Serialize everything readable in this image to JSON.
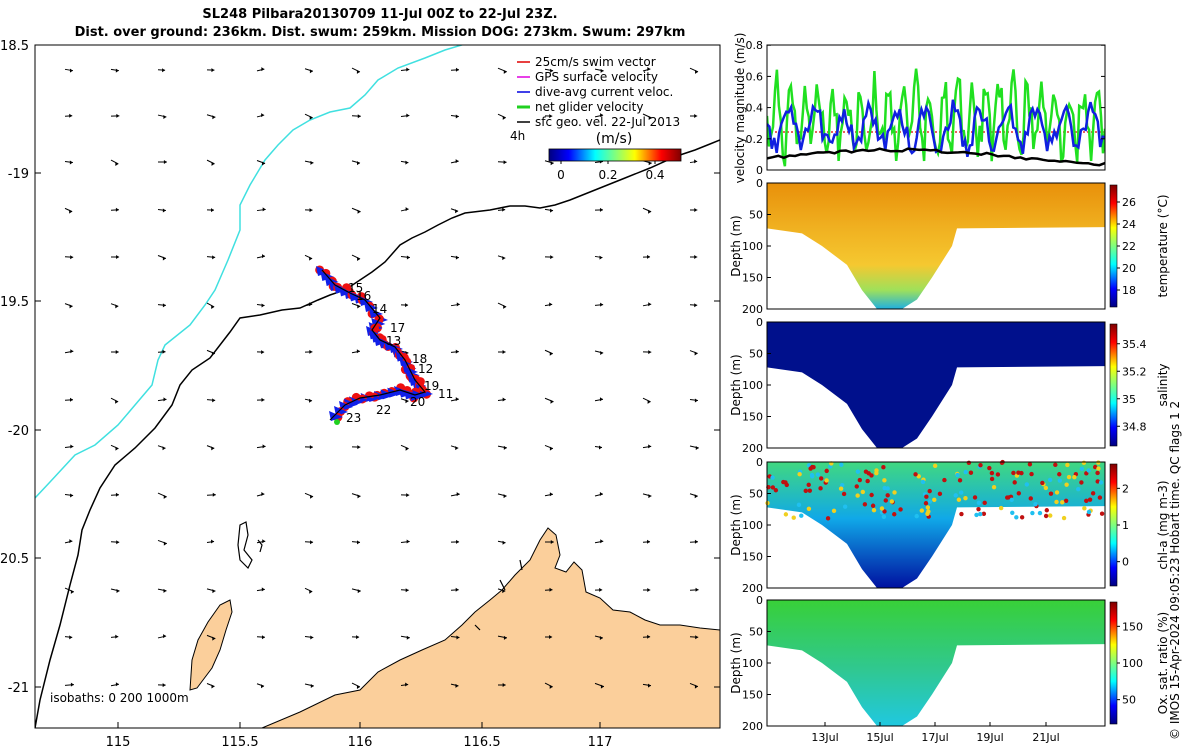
{
  "header": {
    "title_line1": "SL248 Pilbara20130709 11-Jul 00Z to 22-Jul 23Z.",
    "title_line2": "Dist. over ground: 236km. Dist. swum: 259km. Mission DOG: 273km. Swum: 297km"
  },
  "map": {
    "lat_ticks": [
      "18.5",
      "-19",
      "19.5",
      "-20",
      "20.5",
      "-21"
    ],
    "lon_ticks": [
      "115",
      "115.5",
      "116",
      "116.5",
      "117"
    ],
    "legend_items": [
      {
        "label": "25cm/s swim vector",
        "color": "#e00000"
      },
      {
        "label": "GPS surface velocity",
        "color": "#e000e0"
      },
      {
        "label": "dive-avg current veloc.",
        "color": "#0000e0"
      },
      {
        "label": "net glider velocity",
        "color": "#20d020"
      },
      {
        "label": "sfc geo. vel. 22-Jul 2013",
        "color": "#000000"
      }
    ],
    "legend_extra": "4h",
    "colorbar_label": "(m/s)",
    "colorbar_ticks": [
      "0",
      "0.2",
      "0.4"
    ],
    "day_labels": [
      "15",
      "16",
      "14",
      "17",
      "13",
      "18",
      "12",
      "19",
      "11",
      "20",
      "22",
      "23"
    ],
    "isobaths_label": "isobaths: 0   200  1000m",
    "colors": {
      "land": "#fbcf9b",
      "isobath_200": "#000000",
      "isobath_1000": "#40e0e0"
    }
  },
  "panels": {
    "velocity": {
      "ylabel": "velocity magnitude (m/s)",
      "yticks": [
        "0",
        "0.2",
        "0.4",
        "0.6",
        "0.8"
      ]
    },
    "depth_ticks": [
      "0",
      "50",
      "100",
      "150",
      "200"
    ],
    "depth_label": "Depth (m)",
    "sections": [
      {
        "name": "temperature",
        "cbar_label": "temperature (°C)",
        "cbar_ticks": [
          "18",
          "20",
          "22",
          "24",
          "26"
        ]
      },
      {
        "name": "salinity",
        "cbar_label": "salinity",
        "cbar_ticks": [
          "34.8",
          "35",
          "35.2",
          "35.4"
        ]
      },
      {
        "name": "chla",
        "cbar_label": "chl-a (mg m-3)",
        "cbar_ticks": [
          "0",
          "1",
          "2"
        ]
      },
      {
        "name": "oxygen",
        "cbar_label": "Ox. sat. ratio (%)",
        "cbar_ticks": [
          "50",
          "100",
          "150"
        ]
      }
    ],
    "x_ticks": [
      "13Jul",
      "15Jul",
      "17Jul",
      "19Jul",
      "21Jul"
    ]
  },
  "side_note": "© IMOS 15-Apr-2024 09:05:23 Hobart time. QC flags 1  2"
}
